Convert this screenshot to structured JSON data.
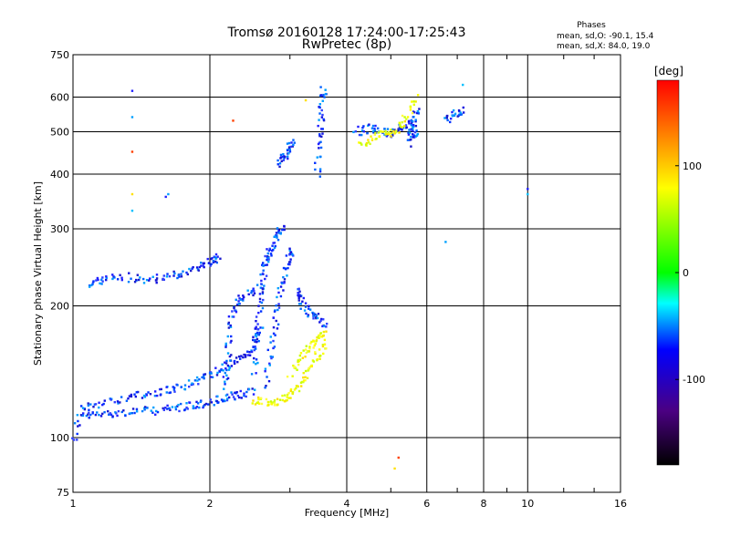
{
  "chart_data": {
    "type": "scatter",
    "title": "Tromsø 20160128 17:24:00-17:25:43",
    "subtitle": "RwPretec (8p)",
    "xlabel": "Frequency [MHz]",
    "ylabel": "Stationary phase Virtual Height [km]",
    "x_scale": "log",
    "y_scale": "log",
    "xlim": [
      1,
      16
    ],
    "ylim": [
      75,
      750
    ],
    "grid": true,
    "x_ticks": [
      1,
      2,
      4,
      6,
      8,
      10,
      16
    ],
    "x_tick_labels": [
      "1",
      "2",
      "4",
      "6",
      "8",
      "10",
      "16"
    ],
    "y_ticks": [
      75,
      100,
      200,
      300,
      400,
      500,
      600,
      750
    ],
    "y_tick_labels": [
      "75",
      "100",
      "200",
      "300",
      "400",
      "500",
      "600",
      "750"
    ],
    "legend": {
      "title": "Phases",
      "lines": [
        "mean, sd,O: -90.1, 15.4",
        "mean, sd,X:  84.0, 19.0"
      ],
      "placement": "top-right"
    },
    "colorbar": {
      "label": "[deg]",
      "ticks": [
        100,
        0,
        -100
      ],
      "tick_labels": [
        "100",
        "0",
        "-100"
      ],
      "range": [
        -180,
        180
      ],
      "colors": [
        "#000000",
        "#4b0082",
        "#0000ff",
        "#00ffff",
        "#00ff00",
        "#ffff00",
        "#ff8000",
        "#ff0000"
      ]
    },
    "series": [
      {
        "traces": [
          [
            [
              1.0,
              98
            ],
            [
              1.03,
              112
            ],
            [
              1.08,
              112
            ],
            [
              1.15,
              113
            ],
            [
              1.22,
              114
            ],
            [
              1.3,
              114
            ],
            [
              1.4,
              115
            ],
            [
              1.5,
              115
            ],
            [
              1.6,
              116
            ],
            [
              1.7,
              117
            ],
            [
              1.8,
              118
            ],
            [
              1.9,
              119
            ],
            [
              2.0,
              120
            ],
            [
              2.1,
              122
            ],
            [
              2.2,
              123
            ],
            [
              2.3,
              125
            ],
            [
              2.4,
              126
            ],
            [
              2.5,
              128
            ]
          ],
          [
            [
              1.05,
              116
            ],
            [
              1.1,
              119
            ],
            [
              1.2,
              121
            ],
            [
              1.3,
              123
            ],
            [
              1.4,
              125
            ],
            [
              1.5,
              126
            ],
            [
              1.6,
              128
            ],
            [
              1.7,
              130
            ],
            [
              1.8,
              133
            ],
            [
              1.9,
              136
            ],
            [
              2.0,
              139
            ],
            [
              2.1,
              142
            ],
            [
              2.2,
              146
            ],
            [
              2.3,
              150
            ],
            [
              2.4,
              155
            ],
            [
              2.5,
              160
            ],
            [
              2.55,
              170
            ],
            [
              2.6,
              180
            ]
          ],
          [
            [
              1.1,
              222
            ],
            [
              1.13,
              228
            ],
            [
              1.2,
              232
            ],
            [
              1.3,
              233
            ],
            [
              1.4,
              230
            ],
            [
              1.5,
              230
            ],
            [
              1.6,
              232
            ],
            [
              1.7,
              236
            ],
            [
              1.8,
              240
            ],
            [
              1.9,
              246
            ],
            [
              2.0,
              252
            ],
            [
              2.05,
              256
            ],
            [
              2.1,
              262
            ]
          ],
          [
            [
              2.15,
              130
            ],
            [
              2.18,
              145
            ],
            [
              2.2,
              160
            ],
            [
              2.22,
              180
            ],
            [
              2.25,
              195
            ],
            [
              2.3,
              205
            ],
            [
              2.4,
              210
            ],
            [
              2.5,
              215
            ],
            [
              2.6,
              220
            ]
          ],
          [
            [
              2.5,
              140
            ],
            [
              2.52,
              160
            ],
            [
              2.55,
              180
            ],
            [
              2.58,
              200
            ],
            [
              2.6,
              220
            ],
            [
              2.63,
              240
            ],
            [
              2.65,
              255
            ],
            [
              2.7,
              262
            ],
            [
              2.75,
              270
            ],
            [
              2.8,
              285
            ],
            [
              2.85,
              295
            ],
            [
              2.9,
              305
            ]
          ],
          [
            [
              2.65,
              130
            ],
            [
              2.7,
              150
            ],
            [
              2.75,
              170
            ],
            [
              2.8,
              190
            ],
            [
              2.85,
              210
            ],
            [
              2.9,
              230
            ],
            [
              2.95,
              250
            ],
            [
              3.0,
              260
            ],
            [
              3.05,
              270
            ]
          ],
          [
            [
              2.85,
              420
            ],
            [
              2.9,
              435
            ],
            [
              2.95,
              450
            ],
            [
              3.0,
              460
            ],
            [
              3.05,
              475
            ]
          ],
          [
            [
              3.45,
              400
            ],
            [
              3.47,
              450
            ],
            [
              3.5,
              500
            ],
            [
              3.52,
              550
            ],
            [
              3.55,
              600
            ],
            [
              3.57,
              630
            ]
          ],
          [
            [
              3.1,
              220
            ],
            [
              3.15,
              210
            ],
            [
              3.2,
              200
            ],
            [
              3.3,
              195
            ],
            [
              3.4,
              190
            ],
            [
              3.5,
              185
            ],
            [
              3.6,
              180
            ]
          ],
          [
            [
              4.2,
              500
            ],
            [
              4.4,
              505
            ],
            [
              4.6,
              510
            ],
            [
              4.8,
              500
            ],
            [
              5.0,
              495
            ],
            [
              5.2,
              505
            ],
            [
              5.4,
              520
            ],
            [
              5.6,
              500
            ],
            [
              5.7,
              490
            ]
          ],
          [
            [
              5.5,
              470
            ],
            [
              5.55,
              500
            ],
            [
              5.6,
              520
            ],
            [
              5.65,
              545
            ],
            [
              5.7,
              560
            ]
          ],
          [
            [
              6.6,
              530
            ],
            [
              6.8,
              545
            ],
            [
              7.0,
              555
            ],
            [
              7.2,
              560
            ]
          ]
        ],
        "color_hint": "blue"
      },
      {
        "traces": [
          [
            [
              2.5,
              122
            ],
            [
              2.6,
              121
            ],
            [
              2.7,
              120
            ],
            [
              2.8,
              121
            ],
            [
              2.9,
              123
            ],
            [
              3.0,
              126
            ],
            [
              3.1,
              130
            ],
            [
              3.2,
              135
            ],
            [
              3.3,
              142
            ],
            [
              3.4,
              150
            ],
            [
              3.5,
              158
            ],
            [
              3.6,
              168
            ]
          ],
          [
            [
              3.0,
              140
            ],
            [
              3.1,
              148
            ],
            [
              3.2,
              155
            ],
            [
              3.3,
              160
            ],
            [
              3.4,
              165
            ],
            [
              3.5,
              170
            ],
            [
              3.6,
              172
            ]
          ],
          [
            [
              4.3,
              470
            ],
            [
              4.5,
              480
            ],
            [
              4.7,
              490
            ],
            [
              4.9,
              495
            ],
            [
              5.1,
              500
            ],
            [
              5.3,
              520
            ],
            [
              5.5,
              560
            ],
            [
              5.7,
              600
            ]
          ]
        ],
        "color_hint": "yellow"
      }
    ],
    "note_points": [
      [
        1.35,
        620
      ],
      [
        1.35,
        540
      ],
      [
        1.35,
        450
      ],
      [
        1.35,
        360
      ],
      [
        1.35,
        330
      ],
      [
        1.6,
        355
      ],
      [
        1.62,
        360
      ],
      [
        2.25,
        530
      ],
      [
        3.25,
        590
      ],
      [
        10.0,
        360
      ],
      [
        10.0,
        370
      ],
      [
        6.6,
        280
      ],
      [
        5.2,
        90
      ],
      [
        5.1,
        85
      ],
      [
        7.2,
        640
      ]
    ]
  }
}
